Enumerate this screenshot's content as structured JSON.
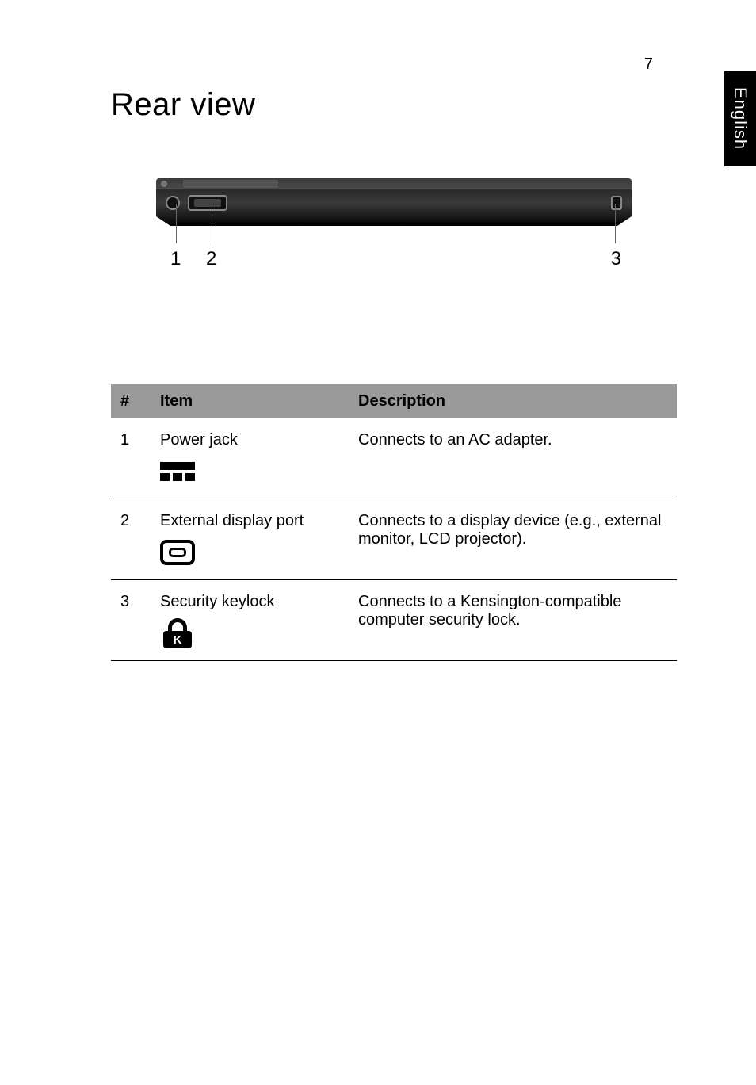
{
  "page_number": "7",
  "side_tab": "English",
  "heading": "Rear view",
  "callout_labels": {
    "n1": "1",
    "n2": "2",
    "n3": "3"
  },
  "table": {
    "headers": {
      "num": "#",
      "item": "Item",
      "desc": "Description"
    },
    "rows": [
      {
        "num": "1",
        "item": "Power jack",
        "desc": "Connects to an AC adapter."
      },
      {
        "num": "2",
        "item": "External display port",
        "desc": "Connects to a display device (e.g., external monitor, LCD projector)."
      },
      {
        "num": "3",
        "item": "Security keylock",
        "desc": "Connects to a Kensington-compatible computer security lock."
      }
    ]
  },
  "lock_letter": "K"
}
